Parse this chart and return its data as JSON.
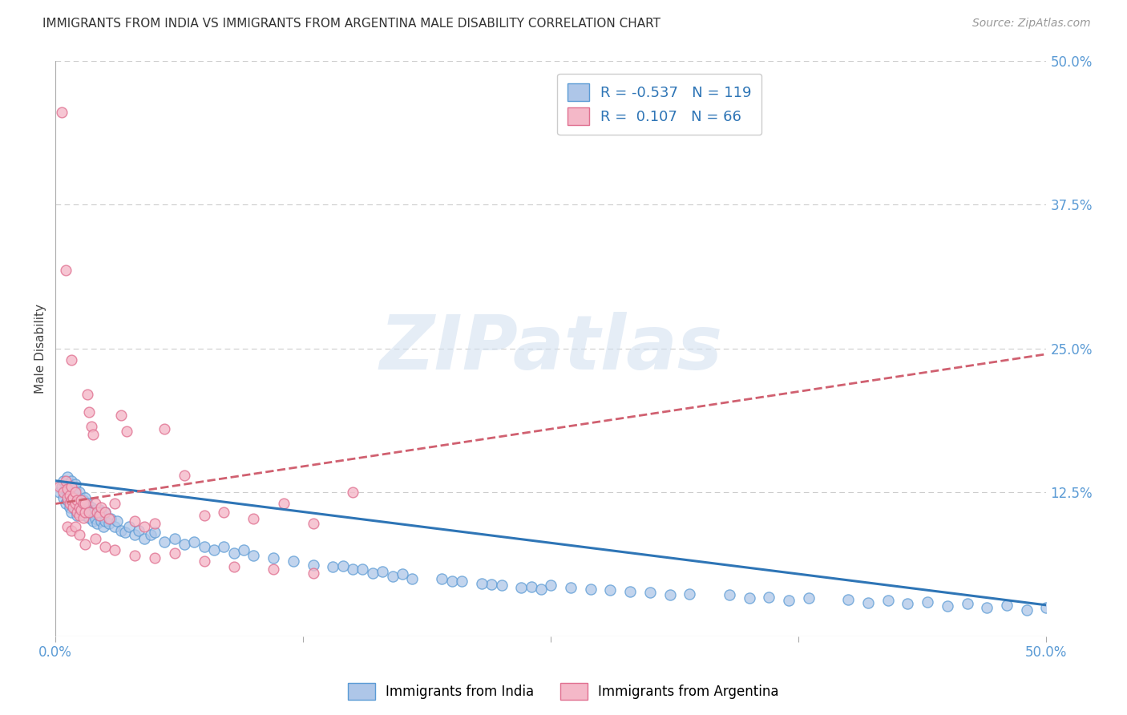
{
  "title": "IMMIGRANTS FROM INDIA VS IMMIGRANTS FROM ARGENTINA MALE DISABILITY CORRELATION CHART",
  "source": "Source: ZipAtlas.com",
  "ylabel": "Male Disability",
  "xlim": [
    0.0,
    0.5
  ],
  "ylim": [
    0.0,
    0.5
  ],
  "india_color": "#aec6e8",
  "india_edge_color": "#5b9bd5",
  "argentina_color": "#f4b8c8",
  "argentina_edge_color": "#e07090",
  "india_R": -0.537,
  "india_N": 119,
  "argentina_R": 0.107,
  "argentina_N": 66,
  "india_line_color": "#2e75b6",
  "argentina_line_color": "#d06070",
  "watermark_text": "ZIPatlas",
  "legend_label_india": "Immigrants from India",
  "legend_label_argentina": "Immigrants from Argentina",
  "india_line_x0": 0.0,
  "india_line_y0": 0.135,
  "india_line_x1": 0.5,
  "india_line_y1": 0.027,
  "argentina_line_x0": 0.0,
  "argentina_line_y0": 0.115,
  "argentina_line_x1": 0.5,
  "argentina_line_y1": 0.245,
  "india_scatter_x": [
    0.002,
    0.003,
    0.004,
    0.004,
    0.005,
    0.005,
    0.005,
    0.006,
    0.006,
    0.006,
    0.007,
    0.007,
    0.007,
    0.008,
    0.008,
    0.008,
    0.009,
    0.009,
    0.009,
    0.01,
    0.01,
    0.01,
    0.01,
    0.011,
    0.011,
    0.012,
    0.012,
    0.012,
    0.013,
    0.013,
    0.014,
    0.014,
    0.015,
    0.015,
    0.015,
    0.016,
    0.016,
    0.017,
    0.017,
    0.018,
    0.018,
    0.019,
    0.019,
    0.02,
    0.02,
    0.021,
    0.022,
    0.022,
    0.023,
    0.023,
    0.024,
    0.025,
    0.025,
    0.027,
    0.028,
    0.03,
    0.031,
    0.033,
    0.035,
    0.037,
    0.04,
    0.042,
    0.045,
    0.048,
    0.05,
    0.055,
    0.06,
    0.065,
    0.07,
    0.075,
    0.08,
    0.085,
    0.09,
    0.095,
    0.1,
    0.11,
    0.12,
    0.13,
    0.14,
    0.15,
    0.16,
    0.17,
    0.18,
    0.2,
    0.22,
    0.24,
    0.26,
    0.28,
    0.3,
    0.32,
    0.34,
    0.36,
    0.38,
    0.4,
    0.42,
    0.44,
    0.46,
    0.48,
    0.5,
    0.25,
    0.27,
    0.29,
    0.31,
    0.35,
    0.37,
    0.41,
    0.43,
    0.45,
    0.47,
    0.49,
    0.195,
    0.205,
    0.215,
    0.225,
    0.235,
    0.245,
    0.175,
    0.165,
    0.155,
    0.145
  ],
  "india_scatter_y": [
    0.125,
    0.13,
    0.12,
    0.135,
    0.115,
    0.128,
    0.132,
    0.118,
    0.122,
    0.138,
    0.112,
    0.125,
    0.13,
    0.108,
    0.12,
    0.135,
    0.115,
    0.125,
    0.118,
    0.11,
    0.122,
    0.128,
    0.132,
    0.105,
    0.118,
    0.112,
    0.12,
    0.125,
    0.108,
    0.115,
    0.11,
    0.118,
    0.105,
    0.112,
    0.12,
    0.108,
    0.115,
    0.103,
    0.11,
    0.108,
    0.112,
    0.1,
    0.108,
    0.102,
    0.11,
    0.098,
    0.105,
    0.11,
    0.1,
    0.108,
    0.095,
    0.1,
    0.108,
    0.098,
    0.102,
    0.095,
    0.1,
    0.092,
    0.09,
    0.095,
    0.088,
    0.092,
    0.085,
    0.088,
    0.09,
    0.082,
    0.085,
    0.08,
    0.082,
    0.078,
    0.075,
    0.078,
    0.072,
    0.075,
    0.07,
    0.068,
    0.065,
    0.062,
    0.06,
    0.058,
    0.055,
    0.052,
    0.05,
    0.048,
    0.045,
    0.043,
    0.042,
    0.04,
    0.038,
    0.037,
    0.036,
    0.034,
    0.033,
    0.032,
    0.031,
    0.03,
    0.028,
    0.027,
    0.025,
    0.044,
    0.041,
    0.039,
    0.036,
    0.033,
    0.031,
    0.029,
    0.028,
    0.026,
    0.025,
    0.023,
    0.05,
    0.048,
    0.046,
    0.044,
    0.042,
    0.041,
    0.054,
    0.056,
    0.058,
    0.061
  ],
  "argentina_scatter_x": [
    0.002,
    0.003,
    0.004,
    0.005,
    0.005,
    0.006,
    0.006,
    0.007,
    0.007,
    0.008,
    0.008,
    0.008,
    0.009,
    0.009,
    0.01,
    0.01,
    0.011,
    0.011,
    0.012,
    0.012,
    0.013,
    0.013,
    0.014,
    0.014,
    0.015,
    0.015,
    0.016,
    0.017,
    0.017,
    0.018,
    0.019,
    0.02,
    0.021,
    0.022,
    0.023,
    0.025,
    0.027,
    0.03,
    0.033,
    0.036,
    0.04,
    0.045,
    0.05,
    0.055,
    0.065,
    0.075,
    0.085,
    0.1,
    0.115,
    0.13,
    0.006,
    0.008,
    0.01,
    0.012,
    0.015,
    0.02,
    0.025,
    0.03,
    0.04,
    0.05,
    0.06,
    0.075,
    0.09,
    0.11,
    0.13,
    0.15
  ],
  "argentina_scatter_y": [
    0.13,
    0.455,
    0.125,
    0.135,
    0.318,
    0.12,
    0.128,
    0.115,
    0.122,
    0.118,
    0.24,
    0.13,
    0.112,
    0.12,
    0.115,
    0.125,
    0.108,
    0.118,
    0.105,
    0.112,
    0.11,
    0.118,
    0.103,
    0.115,
    0.108,
    0.115,
    0.21,
    0.195,
    0.108,
    0.182,
    0.175,
    0.115,
    0.108,
    0.105,
    0.112,
    0.108,
    0.102,
    0.115,
    0.192,
    0.178,
    0.1,
    0.095,
    0.098,
    0.18,
    0.14,
    0.105,
    0.108,
    0.102,
    0.115,
    0.098,
    0.095,
    0.092,
    0.095,
    0.088,
    0.08,
    0.085,
    0.078,
    0.075,
    0.07,
    0.068,
    0.072,
    0.065,
    0.06,
    0.058,
    0.055,
    0.125
  ]
}
